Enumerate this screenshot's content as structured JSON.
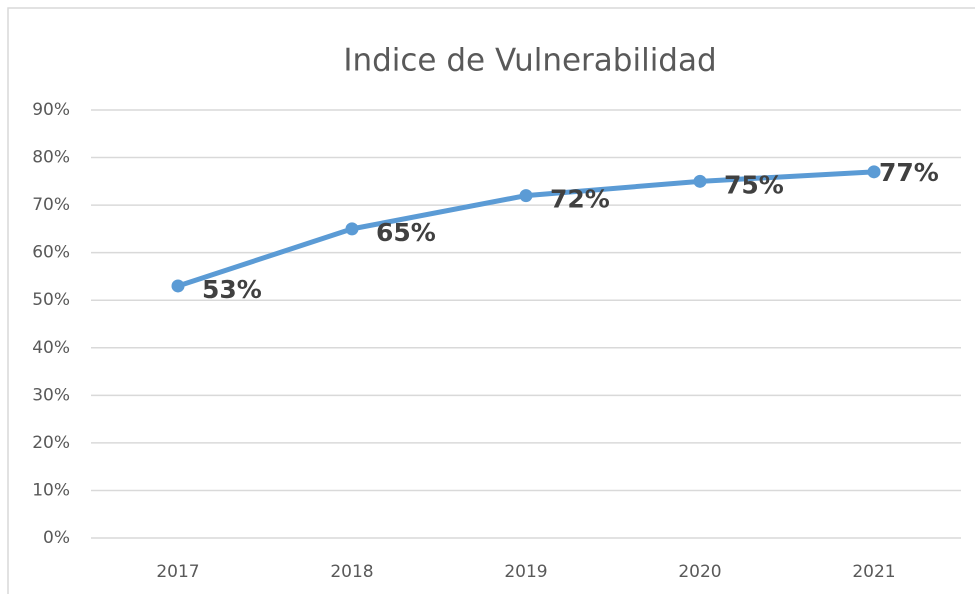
{
  "chart_data": {
    "type": "line",
    "title": "Indice de Vulnerabilidad",
    "categories": [
      "2017",
      "2018",
      "2019",
      "2020",
      "2021"
    ],
    "series": [
      {
        "color": "#5b9bd5",
        "values": [
          53,
          65,
          72,
          75,
          77
        ],
        "value_labels": [
          "53%",
          "65%",
          "72%",
          "75%",
          "77%"
        ]
      }
    ],
    "ylim": [
      0,
      90
    ],
    "yticks": [
      {
        "value": 0,
        "label": "0%"
      },
      {
        "value": 10,
        "label": "10%"
      },
      {
        "value": 20,
        "label": "20%"
      },
      {
        "value": 30,
        "label": "30%"
      },
      {
        "value": 40,
        "label": "40%"
      },
      {
        "value": 50,
        "label": "50%"
      },
      {
        "value": 60,
        "label": "60%"
      },
      {
        "value": 70,
        "label": "70%"
      },
      {
        "value": 80,
        "label": "80%"
      },
      {
        "value": 90,
        "label": "90%"
      }
    ],
    "grid": true
  }
}
